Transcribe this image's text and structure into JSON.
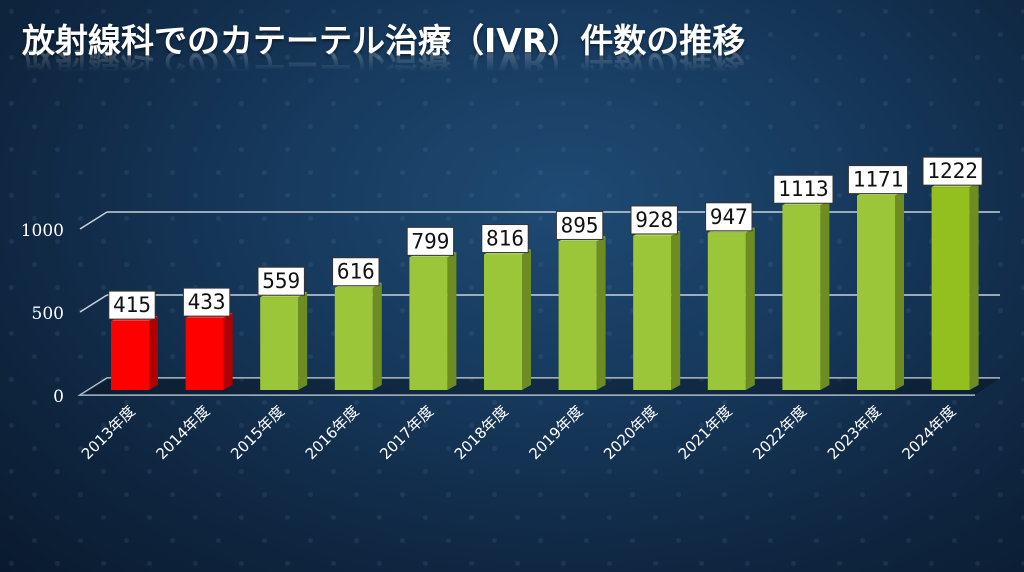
{
  "title": "放射線科でのカテーテル治療（IVR）件数の推移",
  "colors": {
    "highlight_bar": "#ff0000",
    "normal_bar": "#9cc63a",
    "last_bar": "#93c01f",
    "gridline": "#c8d2dc",
    "background": "#173a5e",
    "label_box": "#ffffff"
  },
  "chart_data": {
    "type": "bar",
    "style": "3d-column",
    "title": "放射線科でのカテーテル治療（IVR）件数の推移",
    "categories": [
      "2013年度",
      "2014年度",
      "2015年度",
      "2016年度",
      "2017年度",
      "2018年度",
      "2019年度",
      "2020年度",
      "2021年度",
      "2022年度",
      "2023年度",
      "2024年度"
    ],
    "values": [
      415,
      433,
      559,
      616,
      799,
      816,
      895,
      928,
      947,
      1113,
      1171,
      1222
    ],
    "bar_colors": [
      "red",
      "red",
      "green",
      "green",
      "green",
      "green",
      "green",
      "green",
      "green",
      "green",
      "green",
      "green"
    ],
    "yticks": [
      "0",
      "500",
      "1000"
    ],
    "ylim": [
      0,
      1250
    ],
    "xlabel": "",
    "ylabel": "",
    "grid": true,
    "legend": null,
    "data_labels": true
  }
}
